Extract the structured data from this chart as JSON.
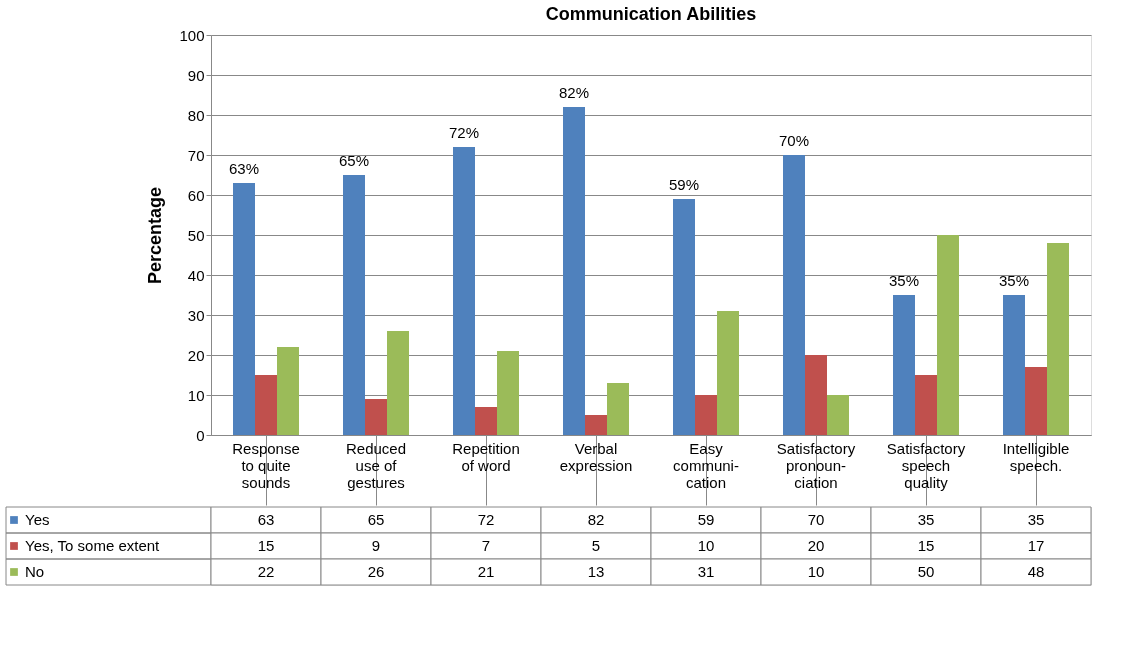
{
  "chart_data": {
    "type": "bar",
    "title": "Communication Abilities",
    "ylabel": "Percentage",
    "categories": [
      "Response\nto quite\nsounds",
      "Reduced\nuse of\ngestures",
      "Repetition\nof word",
      "Verbal\nexpression",
      "Easy\ncommuni-\ncation",
      "Satisfactory\npronoun-\nciation",
      "Satisfactory\nspeech\nquality",
      "Intelligible\nspeech."
    ],
    "series": [
      {
        "name": "Yes",
        "color": "#4f81bd",
        "values": [
          63,
          65,
          72,
          82,
          59,
          70,
          35,
          35
        ]
      },
      {
        "name": "Yes, To some extent",
        "color": "#c0504d",
        "values": [
          15,
          9,
          7,
          5,
          10,
          20,
          15,
          17
        ]
      },
      {
        "name": "No",
        "color": "#9bbb59",
        "values": [
          22,
          26,
          21,
          13,
          31,
          10,
          50,
          48
        ]
      }
    ],
    "annotations": [
      "63%",
      "65%",
      "72%",
      "82%",
      "59%",
      "70%",
      "35%",
      "35%"
    ],
    "ylim": [
      0,
      100
    ],
    "yticks": [
      0,
      10,
      20,
      30,
      40,
      50,
      60,
      70,
      80,
      90,
      100
    ],
    "grid": "y",
    "legend": "bottom",
    "data_labels": true
  }
}
